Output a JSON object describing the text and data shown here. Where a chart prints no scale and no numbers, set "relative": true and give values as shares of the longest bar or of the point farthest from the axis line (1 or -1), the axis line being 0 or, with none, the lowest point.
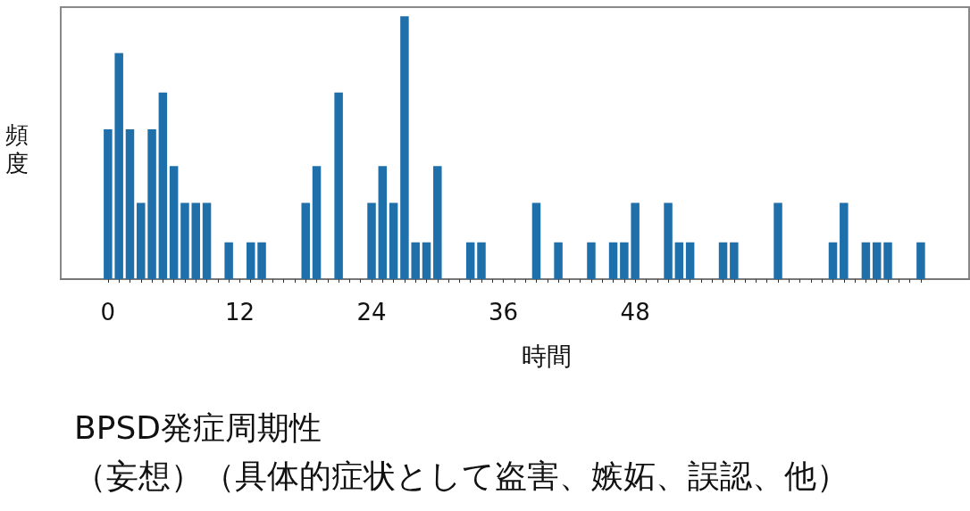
{
  "chart_data": {
    "type": "bar",
    "title": "BPSD発症周期性",
    "subtitle": "（妄想）（具体的症状として盗害、嫉妬、誤認、他）",
    "xlabel": "時間",
    "ylabel": "頻度",
    "relative": true,
    "color": "#1f6faa",
    "x": [
      0,
      1,
      2,
      3,
      4,
      5,
      6,
      7,
      8,
      9,
      11,
      13,
      14,
      18,
      19,
      21,
      24,
      25,
      26,
      27,
      28,
      29,
      30,
      33,
      34,
      39,
      41,
      44,
      46,
      47,
      48,
      51,
      52,
      53,
      56,
      57,
      61,
      66,
      67,
      69,
      70,
      71,
      74
    ],
    "values": [
      0.57,
      0.86,
      0.57,
      0.29,
      0.57,
      0.71,
      0.43,
      0.29,
      0.29,
      0.29,
      0.14,
      0.14,
      0.14,
      0.29,
      0.43,
      0.71,
      0.29,
      0.43,
      0.29,
      1,
      0.14,
      0.14,
      0.43,
      0.14,
      0.14,
      0.29,
      0.14,
      0.14,
      0.14,
      0.14,
      0.29,
      0.29,
      0.14,
      0.14,
      0.14,
      0.14,
      0.29,
      0.14,
      0.29,
      0.14,
      0.14,
      0.14,
      0.14
    ],
    "xlim": [
      -4.3,
      78.4
    ],
    "xticks": [
      0,
      {
        "value": 1,
        "label": null
      },
      {
        "value": 2,
        "label": null
      },
      {
        "value": 3,
        "label": null
      },
      {
        "value": 4,
        "label": null
      },
      {
        "value": 5,
        "label": null
      },
      {
        "value": 6,
        "label": null
      },
      {
        "value": 7,
        "label": null
      },
      {
        "value": 8,
        "label": null
      },
      {
        "value": 9,
        "label": null
      },
      {
        "value": 10,
        "label": null
      },
      {
        "value": 11,
        "label": null
      },
      12,
      {
        "value": 13,
        "label": null
      },
      {
        "value": 14,
        "label": null
      },
      {
        "value": 15,
        "label": null
      },
      {
        "value": 16,
        "label": null
      },
      {
        "value": 17,
        "label": null
      },
      {
        "value": 18,
        "label": null
      },
      {
        "value": 19,
        "label": null
      },
      {
        "value": 20,
        "label": null
      },
      {
        "value": 21,
        "label": null
      },
      {
        "value": 22,
        "label": null
      },
      {
        "value": 23,
        "label": null
      },
      24,
      {
        "value": 25,
        "label": null
      },
      {
        "value": 26,
        "label": null
      },
      {
        "value": 27,
        "label": null
      },
      {
        "value": 28,
        "label": null
      },
      {
        "value": 29,
        "label": null
      },
      {
        "value": 30,
        "label": null
      },
      {
        "value": 31,
        "label": null
      },
      {
        "value": 32,
        "label": null
      },
      {
        "value": 33,
        "label": null
      },
      {
        "value": 34,
        "label": null
      },
      {
        "value": 35,
        "label": null
      },
      36,
      {
        "value": 37,
        "label": null
      },
      {
        "value": 38,
        "label": null
      },
      {
        "value": 39,
        "label": null
      },
      {
        "value": 40,
        "label": null
      },
      {
        "value": 41,
        "label": null
      },
      {
        "value": 42,
        "label": null
      },
      {
        "value": 43,
        "label": null
      },
      {
        "value": 44,
        "label": null
      },
      {
        "value": 45,
        "label": null
      },
      {
        "value": 46,
        "label": null
      },
      {
        "value": 47,
        "label": null
      },
      48,
      {
        "value": 49,
        "label": null
      },
      {
        "value": 50,
        "label": null
      },
      {
        "value": 51,
        "label": null
      },
      {
        "value": 52,
        "label": null
      },
      {
        "value": 53,
        "label": null
      },
      {
        "value": 54,
        "label": null
      },
      {
        "value": 55,
        "label": null
      },
      {
        "value": 56,
        "label": null
      },
      {
        "value": 57,
        "label": null
      },
      {
        "value": 58,
        "label": null
      },
      {
        "value": 59,
        "label": null
      },
      {
        "value": 60,
        "label": null
      },
      {
        "value": 61,
        "label": null
      },
      {
        "value": 62,
        "label": null
      },
      {
        "value": 63,
        "label": null
      },
      {
        "value": 64,
        "label": null
      },
      {
        "value": 65,
        "label": null
      },
      {
        "value": 66,
        "label": null
      },
      {
        "value": 67,
        "label": null
      },
      {
        "value": 68,
        "label": null
      },
      {
        "value": 69,
        "label": null
      },
      {
        "value": 70,
        "label": null
      },
      {
        "value": 71,
        "label": null
      },
      {
        "value": 72,
        "label": null
      },
      {
        "value": 73,
        "label": null
      },
      {
        "value": 74,
        "label": null
      }
    ]
  }
}
